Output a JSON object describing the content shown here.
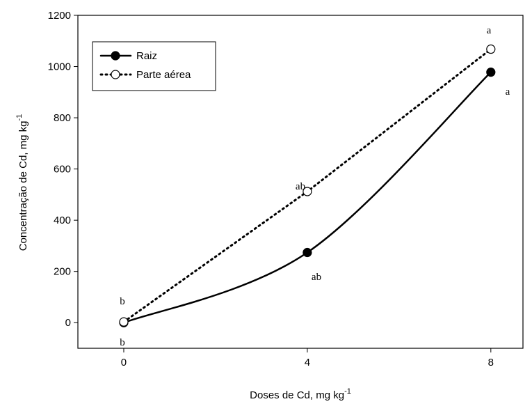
{
  "chart_data": {
    "type": "line",
    "x_label": "Doses de Cd, mg kg",
    "x_label_sup": "-1",
    "y_label": "Concentração de Cd, mg kg",
    "y_label_sup": "-1",
    "x": [
      0,
      4,
      8
    ],
    "series": [
      {
        "name": "Raiz",
        "color": "#000000",
        "line_style": "solid",
        "marker_fill": "#000000",
        "smooth": true,
        "values": [
          0,
          274,
          978
        ]
      },
      {
        "name": "Parte aérea",
        "color": "#000000",
        "line_style": "dotted",
        "marker_fill": "#ffffff",
        "smooth": false,
        "values": [
          3,
          512,
          1068
        ]
      }
    ],
    "annotations": [
      "b",
      "b",
      "ab",
      "ab",
      "a",
      "a"
    ],
    "xlim": [
      -1,
      8.7
    ],
    "xticks": [
      0,
      4,
      8
    ],
    "ylim": [
      -100,
      1200
    ],
    "yticks": [
      0,
      200,
      400,
      600,
      800,
      1000,
      1200
    ],
    "legend": "upper left",
    "grid": false
  }
}
